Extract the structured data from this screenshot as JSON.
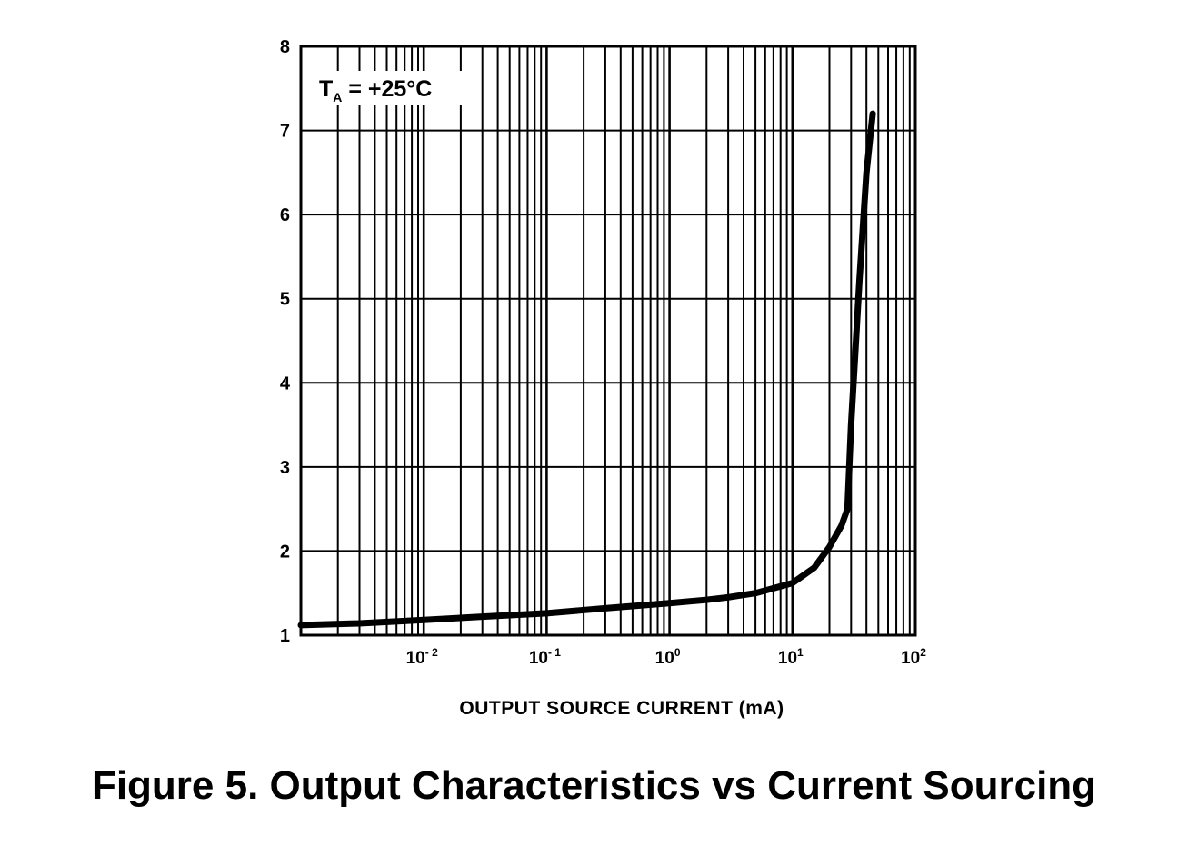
{
  "chart_data": {
    "type": "line",
    "title": "Figure 5. Output Characteristics vs Current Sourcing",
    "xlabel": "OUTPUT SOURCE CURRENT (mA)",
    "ylabel": "",
    "x_scale": "log",
    "xlim": [
      0.001,
      100
    ],
    "ylim": [
      1,
      8
    ],
    "grid": true,
    "y_ticks": [
      "1",
      "2",
      "3",
      "4",
      "5",
      "6",
      "7",
      "8"
    ],
    "x_ticks": [
      {
        "value": 0.01,
        "base": "10",
        "exp": "- 2"
      },
      {
        "value": 0.1,
        "base": "10",
        "exp": "- 1"
      },
      {
        "value": 1,
        "base": "10",
        "exp": "0"
      },
      {
        "value": 10,
        "base": "10",
        "exp": "1"
      },
      {
        "value": 100,
        "base": "10",
        "exp": "2"
      }
    ],
    "annotation": {
      "main": "T",
      "sub": "A",
      "rest": " = +25°C"
    },
    "series": [
      {
        "x": [
          0.001,
          0.003,
          0.01,
          0.03,
          0.1,
          0.3,
          1,
          2,
          3,
          5,
          8,
          10,
          15,
          20,
          25,
          28,
          30,
          35,
          40,
          45
        ],
        "y": [
          1.12,
          1.14,
          1.18,
          1.22,
          1.26,
          1.32,
          1.38,
          1.42,
          1.45,
          1.5,
          1.58,
          1.62,
          1.8,
          2.05,
          2.3,
          2.5,
          3.5,
          5.2,
          6.5,
          7.2
        ]
      }
    ]
  }
}
